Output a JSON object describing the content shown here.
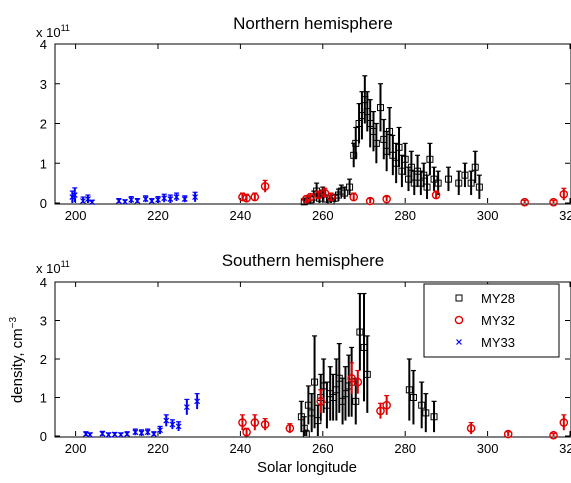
{
  "chart_data": [
    {
      "type": "scatter",
      "title": "Northern hemisphere",
      "scale_label": "x 10",
      "scale_exponent": "11",
      "xlabel": "",
      "ylabel": "",
      "xlim": [
        195,
        320
      ],
      "ylim": [
        0,
        400000000000.0
      ],
      "xticks": [
        "200",
        "220",
        "240",
        "260",
        "280",
        "300",
        "320"
      ],
      "yticks": [
        "0",
        "1",
        "2",
        "3",
        "4"
      ],
      "series": [
        {
          "name": "MY28",
          "color": "#000000",
          "marker": "square",
          "points": [
            [
              255.5,
              3000000000.0,
              5000000000.0
            ],
            [
              256.2,
              5000000000.0,
              6000000000.0
            ],
            [
              257,
              8000000000.0,
              10000000000.0
            ],
            [
              257.8,
              15000000000.0,
              15000000000.0
            ],
            [
              258.5,
              30000000000.0,
              20000000000.0
            ],
            [
              259.2,
              12000000000.0,
              12000000000.0
            ],
            [
              260,
              25000000000.0,
              15000000000.0
            ],
            [
              261,
              10000000000.0,
              10000000000.0
            ],
            [
              262,
              5000000000.0,
              6000000000.0
            ],
            [
              263,
              12000000000.0,
              10000000000.0
            ],
            [
              263.8,
              20000000000.0,
              15000000000.0
            ],
            [
              264.5,
              30000000000.0,
              15000000000.0
            ],
            [
              265.3,
              25000000000.0,
              15000000000.0
            ],
            [
              266.5,
              40000000000.0,
              20000000000.0
            ],
            [
              267.5,
              120000000000.0,
              30000000000.0
            ],
            [
              268,
              150000000000.0,
              40000000000.0
            ],
            [
              268.8,
              200000000000.0,
              50000000000.0
            ],
            [
              269.5,
              220000000000.0,
              60000000000.0
            ],
            [
              270.2,
              260000000000.0,
              60000000000.0
            ],
            [
              270.8,
              230000000000.0,
              50000000000.0
            ],
            [
              271.5,
              200000000000.0,
              60000000000.0
            ],
            [
              272.3,
              180000000000.0,
              50000000000.0
            ],
            [
              273,
              150000000000.0,
              50000000000.0
            ],
            [
              274,
              240000000000.0,
              60000000000.0
            ],
            [
              274.8,
              160000000000.0,
              50000000000.0
            ],
            [
              275.5,
              130000000000.0,
              50000000000.0
            ],
            [
              276.2,
              180000000000.0,
              60000000000.0
            ],
            [
              277,
              120000000000.0,
              50000000000.0
            ],
            [
              277.8,
              100000000000.0,
              50000000000.0
            ],
            [
              278.5,
              140000000000.0,
              50000000000.0
            ],
            [
              279.2,
              80000000000.0,
              40000000000.0
            ],
            [
              280,
              110000000000.0,
              40000000000.0
            ],
            [
              280.8,
              60000000000.0,
              30000000000.0
            ],
            [
              281.5,
              90000000000.0,
              40000000000.0
            ],
            [
              282.2,
              50000000000.0,
              30000000000.0
            ],
            [
              283,
              80000000000.0,
              40000000000.0
            ],
            [
              283.8,
              50000000000.0,
              30000000000.0
            ],
            [
              284.5,
              70000000000.0,
              30000000000.0
            ],
            [
              285.3,
              40000000000.0,
              30000000000.0
            ],
            [
              286,
              110000000000.0,
              40000000000.0
            ],
            [
              287,
              60000000000.0,
              30000000000.0
            ],
            [
              288,
              50000000000.0,
              30000000000.0
            ],
            [
              290.5,
              60000000000.0,
              30000000000.0
            ],
            [
              293,
              50000000000.0,
              30000000000.0
            ],
            [
              294.5,
              70000000000.0,
              30000000000.0
            ],
            [
              296,
              50000000000.0,
              30000000000.0
            ],
            [
              297,
              90000000000.0,
              40000000000.0
            ],
            [
              298,
              40000000000.0,
              30000000000.0
            ]
          ]
        },
        {
          "name": "MY32",
          "color": "#e00000",
          "marker": "circle",
          "points": [
            [
              240.5,
              15000000000.0,
              10000000000.0
            ],
            [
              241.5,
              12000000000.0,
              10000000000.0
            ],
            [
              243.5,
              15000000000.0,
              10000000000.0
            ],
            [
              246,
              42000000000.0,
              15000000000.0
            ],
            [
              256,
              10000000000.0,
              8000000000.0
            ],
            [
              257,
              15000000000.0,
              8000000000.0
            ],
            [
              259,
              20000000000.0,
              10000000000.0
            ],
            [
              260.5,
              25000000000.0,
              12000000000.0
            ],
            [
              262,
              15000000000.0,
              10000000000.0
            ],
            [
              267.5,
              15000000000.0,
              10000000000.0
            ],
            [
              271.5,
              5000000000.0,
              6000000000.0
            ],
            [
              275.5,
              10000000000.0,
              6000000000.0
            ],
            [
              287.5,
              20000000000.0,
              10000000000.0
            ],
            [
              309,
              2000000000.0,
              5000000000.0
            ],
            [
              316,
              2000000000.0,
              5000000000.0
            ],
            [
              318.5,
              22000000000.0,
              15000000000.0
            ]
          ]
        },
        {
          "name": "MY33",
          "color": "#0000ff",
          "marker": "x",
          "points": [
            [
              199.2,
              15000000000.0,
              15000000000.0
            ],
            [
              199.8,
              20000000000.0,
              18000000000.0
            ],
            [
              201.8,
              5000000000.0,
              10000000000.0
            ],
            [
              203,
              10000000000.0,
              10000000000.0
            ],
            [
              204,
              2000000000.0,
              5000000000.0
            ],
            [
              210.5,
              5000000000.0,
              6000000000.0
            ],
            [
              212,
              3000000000.0,
              5000000000.0
            ],
            [
              213.5,
              8000000000.0,
              8000000000.0
            ],
            [
              215,
              5000000000.0,
              6000000000.0
            ],
            [
              217,
              10000000000.0,
              8000000000.0
            ],
            [
              218.5,
              5000000000.0,
              6000000000.0
            ],
            [
              220,
              8000000000.0,
              8000000000.0
            ],
            [
              221.5,
              12000000000.0,
              10000000000.0
            ],
            [
              223,
              10000000000.0,
              10000000000.0
            ],
            [
              224.5,
              15000000000.0,
              10000000000.0
            ],
            [
              226.5,
              10000000000.0,
              8000000000.0
            ],
            [
              229,
              15000000000.0,
              12000000000.0
            ]
          ]
        }
      ]
    },
    {
      "type": "scatter",
      "title": "Southern hemisphere",
      "scale_label": "x 10",
      "scale_exponent": "11",
      "xlabel": "Solar longitude",
      "ylabel": "density, cm",
      "ylabel_exponent": "−3",
      "xlim": [
        195,
        320
      ],
      "ylim": [
        0,
        400000000000.0
      ],
      "xticks": [
        "200",
        "220",
        "240",
        "260",
        "280",
        "300",
        "320"
      ],
      "yticks": [
        "0",
        "1",
        "2",
        "3",
        "4"
      ],
      "legend": {
        "placement": "top-right",
        "entries": [
          "MY28",
          "MY32",
          "MY33"
        ]
      },
      "series": [
        {
          "name": "MY28",
          "color": "#000000",
          "marker": "square",
          "points": [
            [
              254.8,
              50000000000.0,
              40000000000.0
            ],
            [
              255.5,
              20000000000.0,
              30000000000.0
            ],
            [
              256,
              5000000000.0,
              10000000000.0
            ],
            [
              256.5,
              80000000000.0,
              50000000000.0
            ],
            [
              257.3,
              60000000000.0,
              50000000000.0
            ],
            [
              258,
              140000000000.0,
              120000000000.0
            ],
            [
              258.8,
              40000000000.0,
              40000000000.0
            ],
            [
              259.5,
              100000000000.0,
              60000000000.0
            ],
            [
              260.2,
              130000000000.0,
              70000000000.0
            ],
            [
              261,
              80000000000.0,
              60000000000.0
            ],
            [
              261.8,
              110000000000.0,
              70000000000.0
            ],
            [
              262.5,
              100000000000.0,
              60000000000.0
            ],
            [
              263.3,
              120000000000.0,
              80000000000.0
            ],
            [
              264,
              150000000000.0,
              90000000000.0
            ],
            [
              264.8,
              90000000000.0,
              60000000000.0
            ],
            [
              265.5,
              110000000000.0,
              70000000000.0
            ],
            [
              266.3,
              130000000000.0,
              80000000000.0
            ],
            [
              267,
              140000000000.0,
              90000000000.0
            ],
            [
              268,
              90000000000.0,
              60000000000.0
            ],
            [
              269,
              270000000000.0,
              100000000000.0
            ],
            [
              270,
              230000000000.0,
              140000000000.0
            ],
            [
              270.8,
              160000000000.0,
              100000000000.0
            ],
            [
              281,
              120000000000.0,
              80000000000.0
            ],
            [
              282,
              100000000000.0,
              70000000000.0
            ],
            [
              284,
              80000000000.0,
              60000000000.0
            ],
            [
              285,
              60000000000.0,
              50000000000.0
            ],
            [
              287,
              50000000000.0,
              40000000000.0
            ]
          ]
        },
        {
          "name": "MY32",
          "color": "#e00000",
          "marker": "circle",
          "points": [
            [
              240.5,
              35000000000.0,
              20000000000.0
            ],
            [
              241.5,
              10000000000.0,
              10000000000.0
            ],
            [
              243.5,
              35000000000.0,
              20000000000.0
            ],
            [
              246,
              30000000000.0,
              15000000000.0
            ],
            [
              252,
              20000000000.0,
              12000000000.0
            ],
            [
              259.5,
              90000000000.0,
              30000000000.0
            ],
            [
              267,
              150000000000.0,
              40000000000.0
            ],
            [
              268.5,
              140000000000.0,
              30000000000.0
            ],
            [
              274,
              65000000000.0,
              20000000000.0
            ],
            [
              275.5,
              80000000000.0,
              25000000000.0
            ],
            [
              296,
              20000000000.0,
              15000000000.0
            ],
            [
              305,
              5000000000.0,
              6000000000.0
            ],
            [
              316,
              2000000000.0,
              5000000000.0
            ],
            [
              318.5,
              35000000000.0,
              20000000000.0
            ]
          ]
        },
        {
          "name": "MY33",
          "color": "#0000ff",
          "marker": "x",
          "points": [
            [
              202.5,
              5000000000.0,
              6000000000.0
            ],
            [
              203.5,
              3000000000.0,
              5000000000.0
            ],
            [
              206.5,
              6000000000.0,
              6000000000.0
            ],
            [
              208,
              3000000000.0,
              5000000000.0
            ],
            [
              209.5,
              4000000000.0,
              5000000000.0
            ],
            [
              211,
              3000000000.0,
              5000000000.0
            ],
            [
              212.5,
              5000000000.0,
              6000000000.0
            ],
            [
              214.5,
              10000000000.0,
              8000000000.0
            ],
            [
              216,
              8000000000.0,
              8000000000.0
            ],
            [
              217.5,
              10000000000.0,
              8000000000.0
            ],
            [
              219,
              5000000000.0,
              6000000000.0
            ],
            [
              220.5,
              15000000000.0,
              10000000000.0
            ],
            [
              222,
              40000000000.0,
              15000000000.0
            ],
            [
              223.5,
              30000000000.0,
              12000000000.0
            ],
            [
              225,
              25000000000.0,
              12000000000.0
            ],
            [
              227,
              75000000000.0,
              20000000000.0
            ],
            [
              229.5,
              90000000000.0,
              20000000000.0
            ]
          ]
        }
      ]
    }
  ]
}
